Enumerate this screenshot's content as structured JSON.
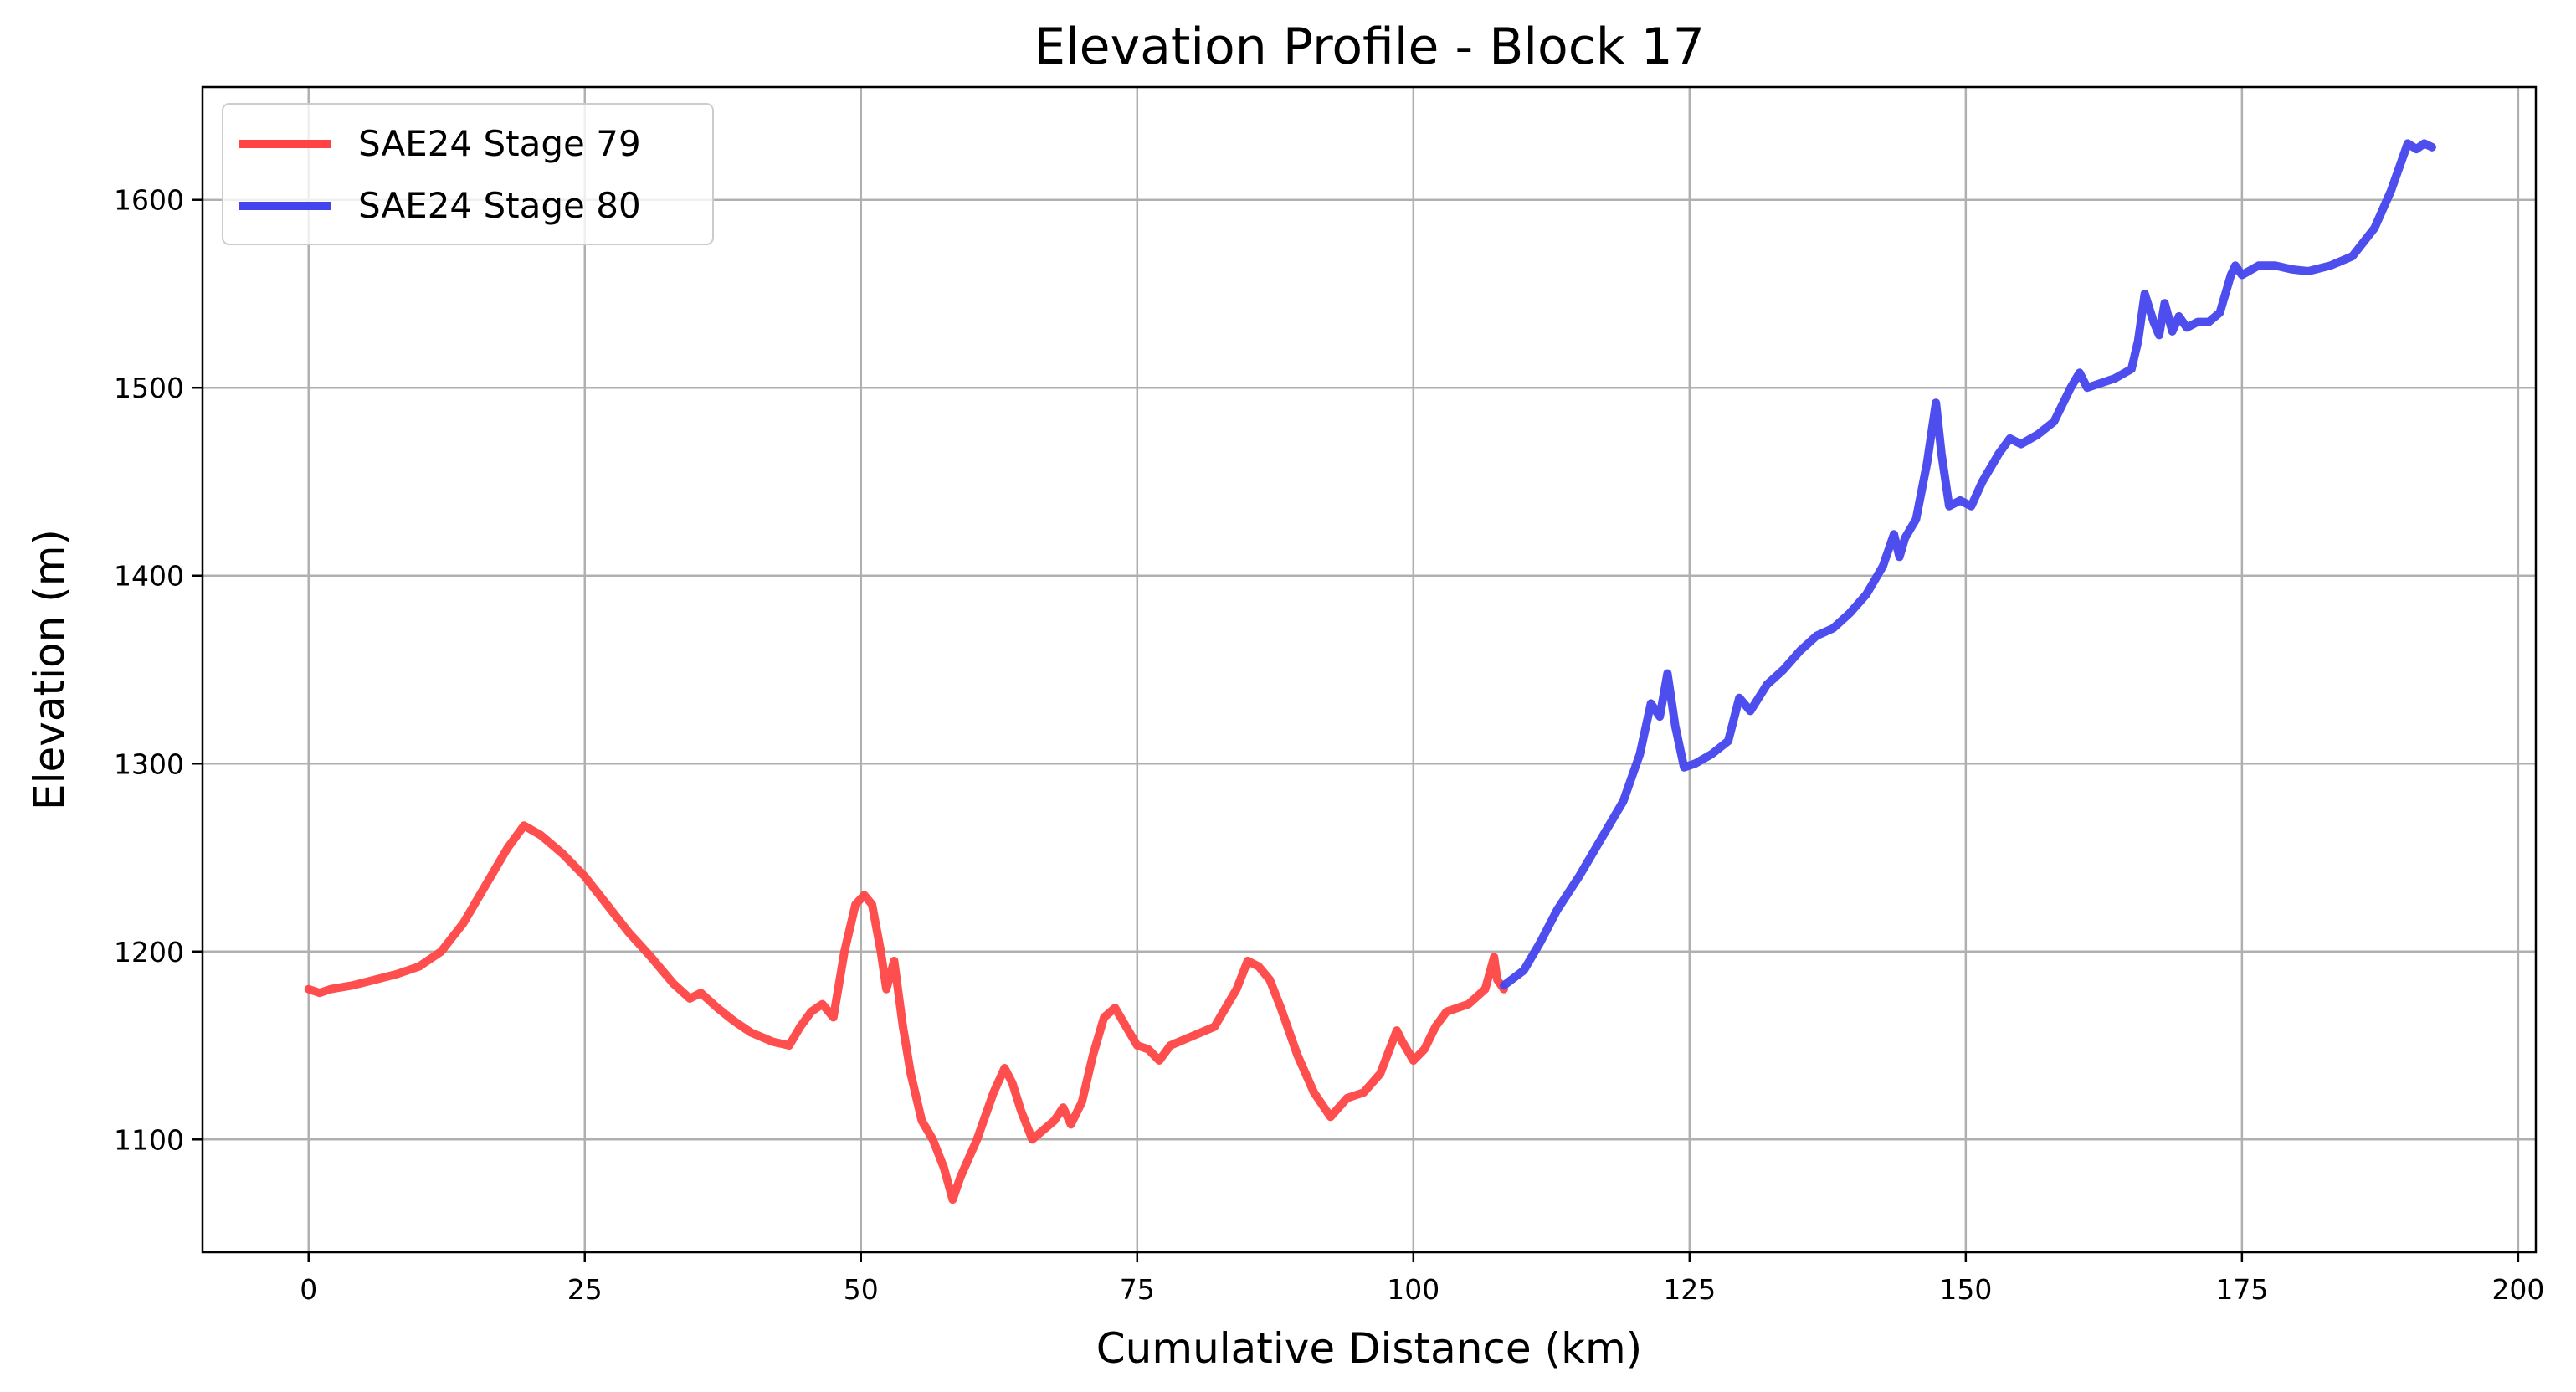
{
  "chart_data": {
    "type": "line",
    "title": "Elevation Profile - Block 17",
    "xlabel": "Cumulative Distance (km)",
    "ylabel": "Elevation (m)",
    "xlim": [
      -9.6,
      201.6
    ],
    "ylim": [
      1040,
      1660
    ],
    "xticks": [
      0,
      25,
      50,
      75,
      100,
      125,
      150,
      175,
      200
    ],
    "yticks": [
      1100,
      1200,
      1300,
      1400,
      1500,
      1600
    ],
    "grid": true,
    "legend_position": "top-left",
    "colors": {
      "stage79": "#ff4444",
      "stage80": "#4444ee"
    },
    "series": [
      {
        "name": "SAE24 Stage 79",
        "color": "#ff4444",
        "x": [
          0,
          1,
          2,
          4,
          6,
          8,
          10,
          12,
          14,
          16,
          18,
          19.5,
          21,
          23,
          25,
          27,
          29,
          31,
          33,
          34.5,
          35.5,
          37,
          38.5,
          40,
          42,
          43.5,
          44.5,
          45.5,
          46.5,
          47.5,
          48.5,
          49.5,
          50.3,
          51,
          51.8,
          52.3,
          53,
          53.8,
          54.5,
          55.5,
          56.5,
          57.5,
          58.3,
          59,
          60.5,
          62,
          63,
          63.7,
          64.5,
          65.5,
          66.5,
          67.5,
          68.3,
          69,
          70,
          71,
          72,
          73,
          74,
          75,
          76,
          77,
          78,
          80,
          82,
          84,
          85,
          86,
          87,
          88,
          89.5,
          91,
          92.5,
          94,
          95.5,
          97,
          98.5,
          99,
          100,
          101,
          102,
          103,
          104,
          105,
          106.5,
          107.3,
          107.6,
          108.2
        ],
        "y": [
          1180,
          1178,
          1180,
          1182,
          1185,
          1188,
          1192,
          1200,
          1215,
          1235,
          1255,
          1267,
          1262,
          1252,
          1240,
          1225,
          1210,
          1197,
          1183,
          1175,
          1178,
          1170,
          1163,
          1157,
          1152,
          1150,
          1160,
          1168,
          1172,
          1165,
          1200,
          1225,
          1230,
          1225,
          1200,
          1180,
          1195,
          1160,
          1135,
          1110,
          1100,
          1085,
          1068,
          1080,
          1100,
          1125,
          1138,
          1130,
          1115,
          1100,
          1105,
          1110,
          1117,
          1108,
          1120,
          1145,
          1165,
          1170,
          1160,
          1150,
          1148,
          1142,
          1150,
          1155,
          1160,
          1180,
          1195,
          1192,
          1185,
          1170,
          1145,
          1125,
          1112,
          1122,
          1125,
          1135,
          1158,
          1152,
          1142,
          1148,
          1160,
          1168,
          1170,
          1172,
          1180,
          1197,
          1185,
          1180
        ]
      },
      {
        "name": "SAE24 Stage 80",
        "color": "#4444ee",
        "x": [
          108.2,
          110,
          111.5,
          113,
          115,
          117,
          119,
          120.5,
          121.5,
          122.3,
          123,
          123.7,
          124.5,
          125.5,
          127,
          128.5,
          129.5,
          130.5,
          132,
          133.5,
          135,
          136.5,
          138,
          139.5,
          141,
          142.5,
          143.5,
          144,
          144.5,
          145.5,
          146.5,
          147.3,
          147.8,
          148.5,
          149.5,
          150.5,
          151.5,
          153,
          154,
          155,
          156.5,
          158,
          159.5,
          160.3,
          161,
          162,
          163.5,
          165,
          165.6,
          166.2,
          167,
          167.5,
          168,
          168.7,
          169.3,
          170,
          171,
          172,
          173,
          174,
          174.4,
          175,
          176.5,
          178,
          179.5,
          181,
          183,
          185,
          187,
          188.5,
          190,
          190.8,
          191.5,
          192.2
        ],
        "y": [
          1182,
          1190,
          1205,
          1222,
          1240,
          1260,
          1280,
          1305,
          1332,
          1325,
          1348,
          1320,
          1298,
          1300,
          1305,
          1312,
          1335,
          1328,
          1342,
          1350,
          1360,
          1368,
          1372,
          1380,
          1390,
          1405,
          1422,
          1410,
          1420,
          1430,
          1460,
          1492,
          1465,
          1437,
          1440,
          1437,
          1450,
          1465,
          1473,
          1470,
          1475,
          1482,
          1500,
          1508,
          1500,
          1502,
          1505,
          1510,
          1525,
          1550,
          1535,
          1528,
          1545,
          1530,
          1538,
          1532,
          1535,
          1535,
          1540,
          1560,
          1565,
          1560,
          1565,
          1565,
          1563,
          1562,
          1565,
          1570,
          1585,
          1605,
          1630,
          1627,
          1630,
          1628
        ]
      }
    ]
  }
}
